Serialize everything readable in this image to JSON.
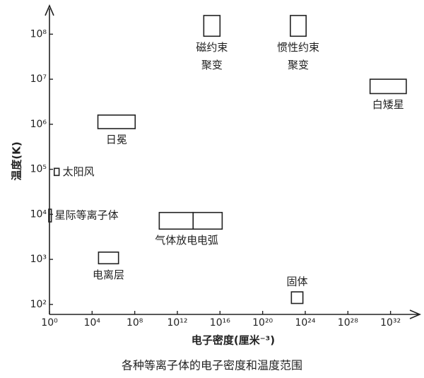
{
  "chart_data": {
    "type": "range-box",
    "caption": "各种等离子体的电子密度和温度范围",
    "x_label": "电子密度(厘米⁻³)",
    "y_label": "温度(K)",
    "x_log": true,
    "y_log": true,
    "xlim": [
      1,
      3e+34
    ],
    "ylim": [
      60,
      400000000.0
    ],
    "xticks": [
      {
        "value": 1,
        "label": "10⁰"
      },
      {
        "value": 10000.0,
        "label": "10⁴"
      },
      {
        "value": 100000000.0,
        "label": "10⁸"
      },
      {
        "value": 1000000000000.0,
        "label": "10¹²"
      },
      {
        "value": 1e+16,
        "label": "10¹⁶"
      },
      {
        "value": 1e+20,
        "label": "10²⁰"
      },
      {
        "value": 1e+24,
        "label": "10²⁴"
      },
      {
        "value": 1e+28,
        "label": "10²⁸"
      },
      {
        "value": 1e+32,
        "label": "10³²"
      }
    ],
    "yticks": [
      {
        "value": 100,
        "label": "10²"
      },
      {
        "value": 1000,
        "label": "10³"
      },
      {
        "value": 10000,
        "label": "10⁴"
      },
      {
        "value": 100000,
        "label": "10⁵"
      },
      {
        "value": 1000000,
        "label": "10⁶"
      },
      {
        "value": 10000000,
        "label": "10⁷"
      },
      {
        "value": 100000000,
        "label": "10⁸"
      }
    ],
    "regions": [
      {
        "label": [
          "磁约束",
          "聚变"
        ],
        "x": [
          300000000000000.0,
          1e+16
        ],
        "y": [
          90000000.0,
          260000000.0
        ]
      },
      {
        "label": [
          "惯性约束",
          "聚变"
        ],
        "x": [
          4e+22,
          1.2e+24
        ],
        "y": [
          90000000.0,
          260000000.0
        ]
      },
      {
        "label": [
          "白矮星"
        ],
        "x": [
          1.2e+30,
          3e+33
        ],
        "y": [
          4800000.0,
          10000000.0
        ]
      },
      {
        "label": [
          "日冕"
        ],
        "x": [
          35000.0,
          110000000.0
        ],
        "y": [
          800000.0,
          1600000.0
        ]
      },
      {
        "label": [
          "太阳风"
        ],
        "x": [
          2.8,
          8
        ],
        "y": [
          73000.0,
          105000.0
        ]
      },
      {
        "label": [
          "星际等离子体"
        ],
        "x": [
          0.85,
          1.5
        ],
        "y": [
          6800.0,
          13000.0
        ]
      },
      {
        "label": [
          "电离层"
        ],
        "x": [
          40000.0,
          3000000.0
        ],
        "y": [
          800.0,
          1450.0
        ]
      },
      {
        "label": [
          "气体放电"
        ],
        "x": [
          20000000000.0,
          30000000000000.0
        ],
        "y": [
          4700.0,
          11000.0
        ]
      },
      {
        "label": [
          "电弧"
        ],
        "x": [
          30000000000000.0,
          1.6e+16
        ],
        "y": [
          4700.0,
          11000.0
        ]
      },
      {
        "label": [
          "固体"
        ],
        "x": [
          5e+22,
          6e+23
        ],
        "y": [
          105.0,
          190.0
        ]
      }
    ]
  }
}
